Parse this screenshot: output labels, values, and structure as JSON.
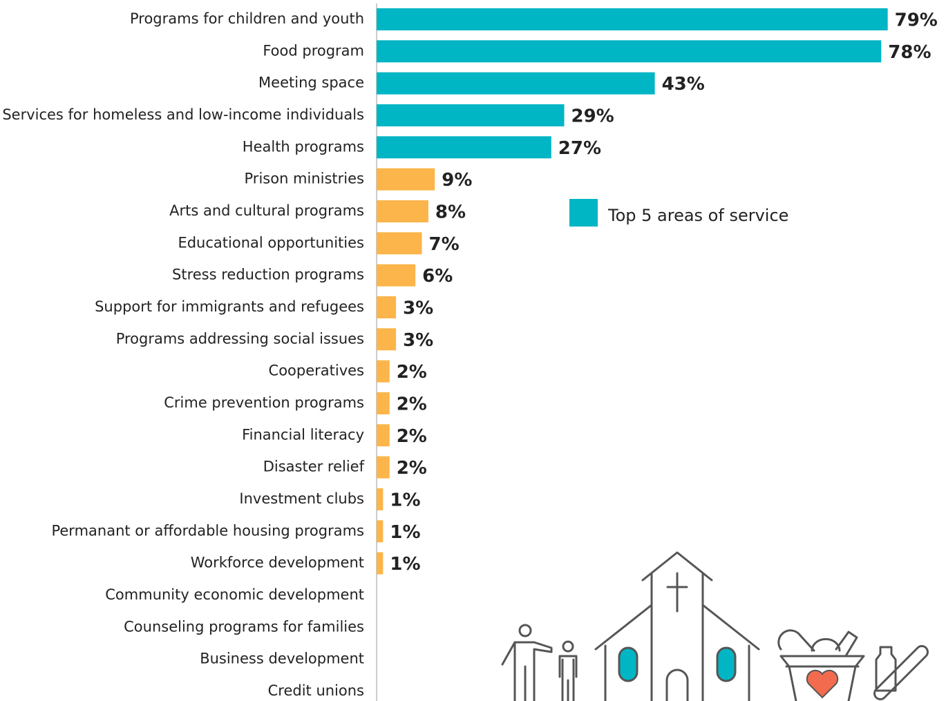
{
  "chart_data": {
    "type": "bar",
    "orientation": "horizontal",
    "categories": [
      "Programs for children and youth",
      "Food program",
      "Meeting space",
      "Services for homeless and low-income individuals",
      "Health programs",
      "Prison ministries",
      "Arts and cultural programs",
      "Educational opportunities",
      "Stress reduction programs",
      "Support for immigrants and refugees",
      "Programs addressing social issues",
      "Cooperatives",
      "Crime prevention programs",
      "Financial literacy",
      "Disaster relief",
      "Investment clubs",
      "Permanant or affordable housing programs",
      "Workforce development",
      "Community economic development",
      "Counseling programs for families",
      "Business development",
      "Credit unions"
    ],
    "values": [
      79,
      78,
      43,
      29,
      27,
      9,
      8,
      7,
      6,
      3,
      3,
      2,
      2,
      2,
      2,
      1,
      1,
      1,
      0,
      0,
      0,
      0
    ],
    "value_labels": [
      "79%",
      "78%",
      "43%",
      "29%",
      "27%",
      "9%",
      "8%",
      "7%",
      "6%",
      "3%",
      "3%",
      "2%",
      "2%",
      "2%",
      "2%",
      "1%",
      "1%",
      "1%",
      null,
      null,
      null,
      null
    ],
    "colors": [
      "#00b5c4",
      "#00b5c4",
      "#00b5c4",
      "#00b5c4",
      "#00b5c4",
      "#fbb54a",
      "#fbb54a",
      "#fbb54a",
      "#fbb54a",
      "#fbb54a",
      "#fbb54a",
      "#fbb54a",
      "#fbb54a",
      "#fbb54a",
      "#fbb54a",
      "#fbb54a",
      "#fbb54a",
      "#fbb54a",
      "#fbb54a",
      "#fbb54a",
      "#fbb54a",
      "#fbb54a"
    ],
    "legend": {
      "label": "Top 5 areas of service",
      "color": "#00b5c4"
    },
    "xlim": [
      0,
      80
    ]
  }
}
